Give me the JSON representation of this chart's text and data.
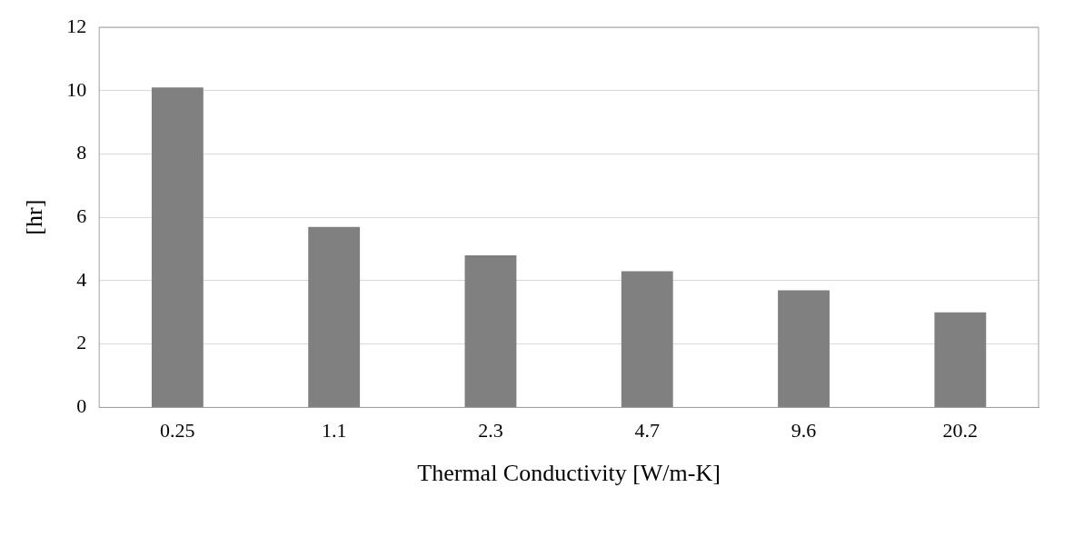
{
  "chart_data": {
    "type": "bar",
    "xlabel": "Thermal Conductivity [W/m-K]",
    "ylabel": "[hr]",
    "categories": [
      "0.25",
      "1.1",
      "2.3",
      "4.7",
      "9.6",
      "20.2"
    ],
    "values": [
      10.1,
      5.7,
      4.8,
      4.3,
      3.7,
      3.0
    ],
    "color": "#808080",
    "ylim": [
      0,
      12
    ],
    "yticks": [
      0,
      2,
      4,
      6,
      8,
      10,
      12
    ],
    "grid": "y",
    "legend": false
  }
}
